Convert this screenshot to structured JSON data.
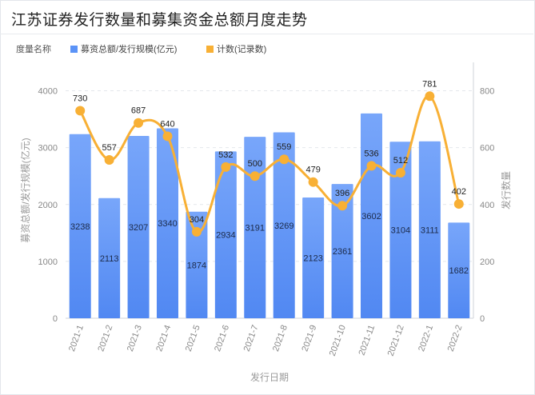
{
  "title": "江苏证券发行数量和募集资金总额月度走势",
  "chart_data": {
    "type": "bar+line",
    "categories": [
      "2021-1",
      "2021-2",
      "2021-3",
      "2021-4",
      "2021-5",
      "2021-6",
      "2021-7",
      "2021-8",
      "2021-9",
      "2021-10",
      "2021-11",
      "2021-12",
      "2022-1",
      "2022-2"
    ],
    "series": [
      {
        "name": "募资总额/发行规模(亿元)",
        "type": "bar",
        "axis": "left",
        "color": "#5b93f7",
        "values": [
          3238,
          2113,
          3207,
          3340,
          1874,
          2934,
          3191,
          3269,
          2123,
          2361,
          3602,
          3104,
          3111,
          1682
        ]
      },
      {
        "name": "计数(记录数)",
        "type": "line",
        "axis": "right",
        "color": "#f8b035",
        "values": [
          730,
          557,
          687,
          640,
          304,
          532,
          500,
          559,
          479,
          396,
          536,
          512,
          781,
          402
        ]
      }
    ],
    "legend_title": "度量名称",
    "legend_position": "top-left",
    "xlabel": "发行日期",
    "ylabel_left": "募资总额/发行规模(亿元)",
    "ylabel_right": "发行数量",
    "ylim_left": [
      0,
      4500
    ],
    "yticks_left": [
      0,
      1000,
      2000,
      3000,
      4000
    ],
    "ylim_right": [
      0,
      900
    ],
    "yticks_right": [
      0,
      200,
      400,
      600,
      800
    ],
    "grid": "dashed-horizontal"
  }
}
